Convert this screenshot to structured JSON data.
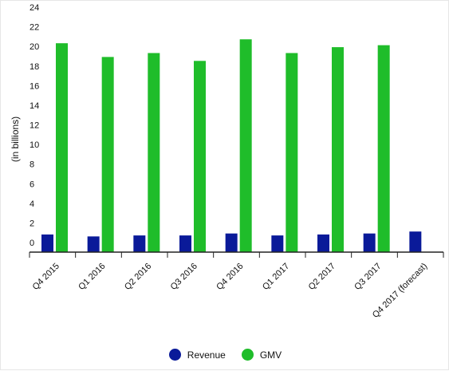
{
  "chart_data": {
    "type": "bar",
    "categories": [
      "Q4 2015",
      "Q1 2016",
      "Q2 2016",
      "Q3 2016",
      "Q4 2016",
      "Q1 2017",
      "Q2 2017",
      "Q3 2017",
      "Q4 2017 (forecast)"
    ],
    "series": [
      {
        "name": "Revenue",
        "color": "#0a1a99",
        "values": [
          1.8,
          1.6,
          1.7,
          1.7,
          1.9,
          1.7,
          1.8,
          1.9,
          2.1
        ]
      },
      {
        "name": "GMV",
        "color": "#1fbd2a",
        "values": [
          21.3,
          19.9,
          20.3,
          19.5,
          21.7,
          20.3,
          20.9,
          21.1,
          null
        ]
      }
    ],
    "title": "",
    "xlabel": "",
    "ylabel": "(in billions)",
    "ylim": [
      0,
      24
    ],
    "yticks": [
      0,
      2,
      4,
      6,
      8,
      10,
      12,
      14,
      16,
      18,
      20,
      22,
      24
    ],
    "grid": false,
    "legend_position": "bottom"
  }
}
